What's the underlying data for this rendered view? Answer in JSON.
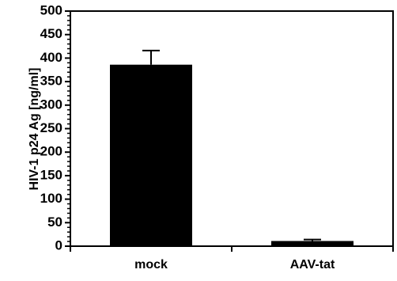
{
  "chart_data": {
    "type": "bar",
    "title": "",
    "xlabel": "",
    "ylabel": "HIV-1 p24 Ag [ng/ml]",
    "categories": [
      "mock",
      "AAV-tat"
    ],
    "values": [
      386,
      11
    ],
    "error_bars": [
      30,
      3
    ],
    "ylim": [
      0,
      500
    ],
    "yticks": [
      0,
      50,
      100,
      150,
      200,
      250,
      300,
      350,
      400,
      450,
      500
    ],
    "minor_ticks_per_major": 5,
    "grid": false,
    "legend": "none",
    "colors": {
      "bar": "#000000",
      "axis": "#000000",
      "background": "#ffffff"
    }
  }
}
